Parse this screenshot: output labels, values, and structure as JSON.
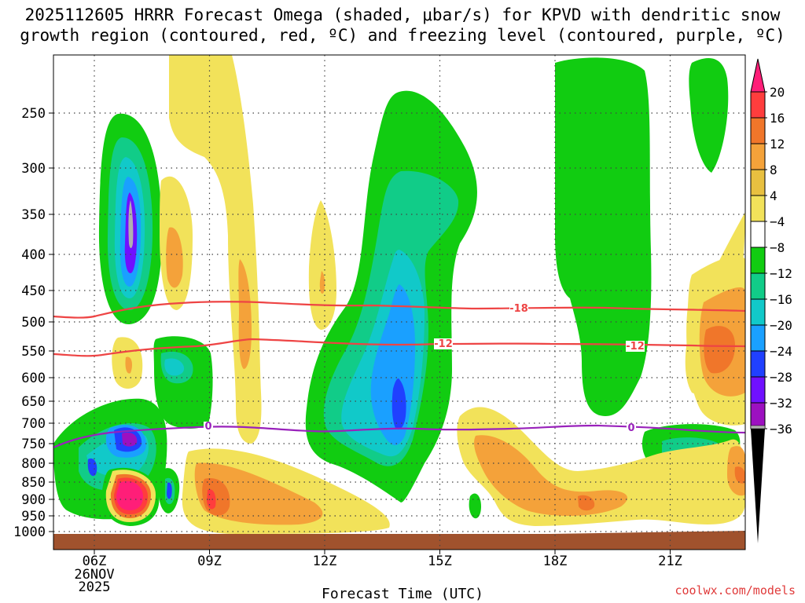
{
  "chart_data": {
    "type": "heatmap",
    "title_line1": "2025112605 HRRR Forecast Omega (shaded, μbar/s) for KPVD with dendritic snow",
    "title_line2": "growth region (contoured, red, ºC) and freezing level (contoured, purple, ºC)",
    "xlabel": "Forecast Time (UTC)",
    "credit": "coolwx.com/models",
    "x_ticks": [
      "06Z",
      "09Z",
      "12Z",
      "15Z",
      "18Z",
      "21Z"
    ],
    "x_date_label": [
      "26NOV",
      "2025"
    ],
    "y_ticks": [
      "250",
      "300",
      "350",
      "400",
      "450",
      "500",
      "550",
      "600",
      "650",
      "700",
      "750",
      "800",
      "850",
      "900",
      "950",
      "1000"
    ],
    "colorbar_labels": [
      "20",
      "16",
      "12",
      "8",
      "4",
      "−4",
      "−8",
      "−12",
      "−16",
      "−20",
      "−24",
      "−28",
      "−32",
      "−36"
    ],
    "colorbar_colors": [
      "#ff3d3d",
      "#f0762a",
      "#f4a23a",
      "#e8c040",
      "#f2e25a",
      "#ffffff",
      "#11cc11",
      "#11cc88",
      "#11c9c9",
      "#1aa0ff",
      "#2040ff",
      "#7010ff",
      "#9c10c0",
      "#b0b0b0"
    ],
    "contour_labels": {
      "dgz_upper": "-18",
      "dgz_lower": "-12",
      "freezing": "0"
    },
    "colors": {
      "dgz": "#ee4444",
      "freezing": "#9922bb",
      "terrain": "#a0522d"
    }
  }
}
